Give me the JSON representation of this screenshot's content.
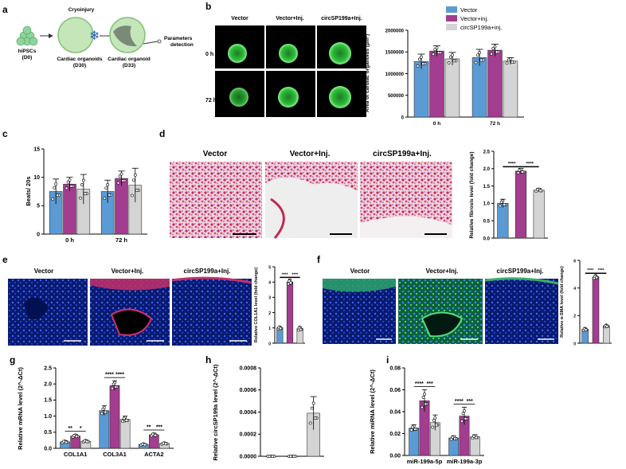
{
  "colors": {
    "vector": "#5b9bd5",
    "inj": "#a23d8f",
    "circ": "#d4d4d4",
    "green_ring": "#39d04a",
    "tissue_red": "#c7375a",
    "nuclei_blue": "#1f3fc0"
  },
  "panel_letters": [
    "a",
    "b",
    "c",
    "d",
    "e",
    "f",
    "g",
    "h",
    "i"
  ],
  "panel_a": {
    "hipsc": "hiPSCs",
    "d0": "(D0)",
    "cryo": "Cryoinjury",
    "co30": "Cardiac organoids",
    "d30": "(D30)",
    "co33": "Cardiac organoid",
    "d33": "(D33)",
    "params1": "Parameters",
    "params2": "detection"
  },
  "panel_b": {
    "cols": [
      "Vector",
      "Vector+Inj.",
      "circSP199a+Inj."
    ],
    "rows": [
      "0 h",
      "72 h"
    ]
  },
  "panel_d": {
    "cols": [
      "Vector",
      "Vector+Inj.",
      "circSP199a+Inj."
    ]
  },
  "panel_e": {
    "cols": [
      "Vector",
      "Vector+Inj.",
      "circSP199a+Inj."
    ]
  },
  "panel_f": {
    "cols": [
      "Vector",
      "Vector+Inj.",
      "circSP199a+Inj."
    ]
  },
  "chart_data": [
    {
      "id": "b",
      "type": "bar",
      "ylabel": "Area of cardiac organoids (μm²)",
      "categories": [
        "0 h",
        "72 h"
      ],
      "legend": [
        "Vector",
        "Vector+inj.",
        "circSP199a+inj."
      ],
      "legend_position": "top-right",
      "ylim": [
        0,
        2000000
      ],
      "yticks": [
        "0",
        "500000",
        "1000000",
        "1500000",
        "2000000"
      ],
      "series": [
        {
          "name": "Vector",
          "values": [
            1280000,
            1370000
          ],
          "err": [
            170000,
            190000
          ]
        },
        {
          "name": "Vector+inj.",
          "values": [
            1520000,
            1540000
          ],
          "err": [
            120000,
            140000
          ]
        },
        {
          "name": "circSP199a+inj.",
          "values": [
            1340000,
            1290000
          ],
          "err": [
            150000,
            80000
          ]
        }
      ]
    },
    {
      "id": "c",
      "type": "bar",
      "ylabel": "Beats/ 20s",
      "categories": [
        "0 h",
        "72 h"
      ],
      "ylim": [
        0,
        15
      ],
      "yticks": [
        "0",
        "5",
        "10",
        "15"
      ],
      "series": [
        {
          "values": [
            7.5,
            7.5
          ],
          "err": [
            2.2,
            2.0
          ]
        },
        {
          "values": [
            8.8,
            9.8
          ],
          "err": [
            1.2,
            1.3
          ]
        },
        {
          "values": [
            7.9,
            8.6
          ],
          "err": [
            2.6,
            3.0
          ]
        }
      ]
    },
    {
      "id": "d",
      "type": "bar",
      "ylabel": "Relative fibrosis level (fold change)",
      "ylim": [
        0,
        2.5
      ],
      "yticks": [
        "0.0",
        "0.5",
        "1.0",
        "1.5",
        "2.0",
        "2.5"
      ],
      "values": [
        1.0,
        1.93,
        1.38
      ],
      "err": [
        0.12,
        0.08,
        0.05
      ],
      "sig": [
        "****",
        "****"
      ]
    },
    {
      "id": "e",
      "type": "bar",
      "ylabel": "Relative COL1A1 level (fold change)",
      "ylim": [
        0,
        5
      ],
      "yticks": [
        "0",
        "1",
        "2",
        "3",
        "4",
        "5"
      ],
      "values": [
        1.0,
        4.0,
        0.95
      ],
      "err": [
        0.1,
        0.2,
        0.15
      ],
      "sig": [
        "****",
        "****"
      ]
    },
    {
      "id": "f",
      "type": "bar",
      "ylabel": "Relative α-SMA level (fold change)",
      "ylim": [
        0,
        6
      ],
      "yticks": [
        "0",
        "2",
        "4",
        "6"
      ],
      "values": [
        1.0,
        4.8,
        1.25
      ],
      "err": [
        0.12,
        0.15,
        0.1
      ],
      "sig": [
        "****",
        "****"
      ]
    },
    {
      "id": "g",
      "type": "bar",
      "ylabel": "Relative mRNA level (2^-ΔCt)",
      "categories": [
        "COL1A1",
        "COL3A1",
        "ACTA2"
      ],
      "ylim": [
        0,
        2.5
      ],
      "yticks": [
        "0.0",
        "0.5",
        "1.0",
        "1.5",
        "2.0",
        "2.5"
      ],
      "series": [
        {
          "values": [
            0.2,
            1.17,
            0.12
          ],
          "err": [
            0.04,
            0.15,
            0.03
          ]
        },
        {
          "values": [
            0.38,
            1.95,
            0.42
          ],
          "err": [
            0.05,
            0.15,
            0.05
          ]
        },
        {
          "values": [
            0.22,
            0.9,
            0.15
          ],
          "err": [
            0.04,
            0.1,
            0.03
          ]
        }
      ],
      "sig": [
        [
          "**",
          "*"
        ],
        [
          "****",
          "****"
        ],
        [
          "**",
          "***"
        ]
      ]
    },
    {
      "id": "h",
      "type": "bar",
      "ylabel": "Relative circSP199a level (2^-ΔCt)",
      "ylim": [
        0,
        0.0008
      ],
      "yticks": [
        "0.0000",
        "0.0002",
        "0.0004",
        "0.0006",
        "0.0008"
      ],
      "values": [
        0.0,
        0.0,
        0.00039
      ],
      "err": [
        0,
        0,
        0.00015
      ]
    },
    {
      "id": "i",
      "type": "bar",
      "ylabel": "Relative miRNA level (2^-ΔCt)",
      "categories": [
        "miR-199a-5p",
        "miR-199a-3p"
      ],
      "ylim": [
        0,
        0.08
      ],
      "yticks": [
        "0.00",
        "0.02",
        "0.04",
        "0.06",
        "0.08"
      ],
      "series": [
        {
          "values": [
            0.025,
            0.016
          ],
          "err": [
            0.003,
            0.002
          ]
        },
        {
          "values": [
            0.05,
            0.036
          ],
          "err": [
            0.01,
            0.008
          ]
        },
        {
          "values": [
            0.03,
            0.017
          ],
          "err": [
            0.007,
            0.002
          ]
        }
      ],
      "sig": [
        [
          "****",
          "***"
        ],
        [
          "****",
          "***"
        ]
      ]
    }
  ]
}
